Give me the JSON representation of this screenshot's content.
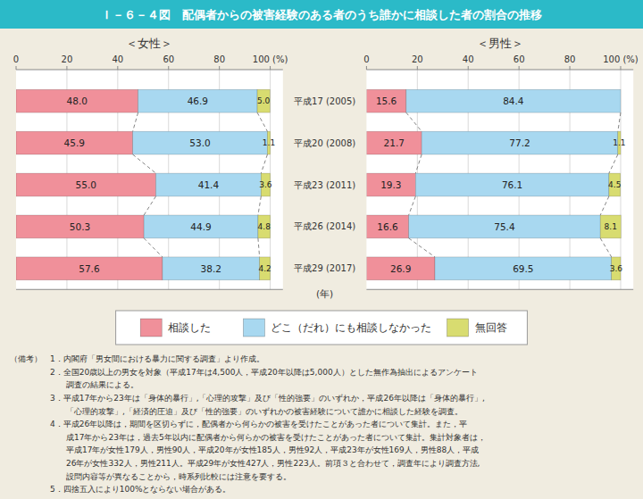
{
  "chart_data": [
    {
      "type": "bar",
      "title": "Ｉ－６－４図　配偶者からの被害経験のある者のうち誰かに相談した者の割合の推移",
      "subtitle": "＜女性＞",
      "ylabel": "(年)",
      "orientation": "horizontal",
      "stacked": true,
      "data_labels": true,
      "grid": true,
      "legend": "bottom",
      "categories": [
        "平成17 (2005)",
        "平成20 (2008)",
        "平成23 (2011)",
        "平成26 (2014)",
        "平成29 (2017)"
      ],
      "series": [
        {
          "name": "相談した",
          "color": "#f0909a",
          "values": [
            48.0,
            45.9,
            55.0,
            50.3,
            57.6
          ],
          "value_labels": [
            "48.0",
            "45.9",
            "55.0",
            "50.3",
            "57.6"
          ]
        },
        {
          "name": "どこ（だれ）にも相談しなかった",
          "color": "#a8d8f0",
          "values": [
            46.9,
            53.0,
            41.4,
            44.9,
            38.2
          ],
          "value_labels": [
            "46.9",
            "53.0",
            "41.4",
            "44.9",
            "38.2"
          ]
        },
        {
          "name": "無回答",
          "color": "#d8dc70",
          "values": [
            5.0,
            1.1,
            3.6,
            4.8,
            4.2
          ],
          "value_labels": [
            "5.0",
            "1.1",
            "3.6",
            "4.8",
            "4.2"
          ]
        }
      ],
      "xlim": [
        0,
        105
      ],
      "xticks": [
        0,
        20,
        40,
        60,
        80,
        {
          "value": 100,
          "label": "100 (%)"
        }
      ],
      "annotations": [
        "（備考）　1．内閣府「男女間における暴力に関する調査」より作成。",
        "　　　　　2．全国20歳以上の男女を対象（平成17年は4,500人，平成20年以降は5,000人）とした無作為抽出によるアンケート",
        "　　　　　　　調査の結果による。",
        "　　　　　3．平成17年から23年は「身体的暴行」,「心理的攻撃」及び「性的強要」のいずれか，平成26年以降は「身体的暴行」,",
        "　　　　　　　「心理的攻撃」,「経済的圧迫」及び「性的強要」のいずれかの被害経験について誰かに相談した経験を調査。",
        "　　　　　4．平成26年以降は，期間を区切らずに，配偶者から何らかの被害を受けたことがあった者について集計。また，平",
        "　　　　　　　成17年から23年は，過去5年以内に配偶者から何らかの被害を受けたことがあった者について集計。集計対象者は，",
        "　　　　　　　平成17年が女性179人，男性90人，平成20年が女性185人，男性92人，平成23年が女性169人，男性88人，平成",
        "　　　　　　　26年が女性332人，男性211人。平成29年が女性427人，男性223人。前項３と合わせて，調査年により調査方法,",
        "　　　　　　　設問内容等が異なることから，時系列比較には注意を要する。",
        "　　　　　5．四捨五入により100%とならない場合がある。"
      ]
    },
    {
      "type": "bar",
      "subtitle": "＜男性＞",
      "orientation": "horizontal",
      "stacked": true,
      "data_labels": true,
      "grid": true,
      "categories": [
        "平成17 (2005)",
        "平成20 (2008)",
        "平成23 (2011)",
        "平成26 (2014)",
        "平成29 (2017)"
      ],
      "series": [
        {
          "color": "#f0909a",
          "values": [
            15.6,
            21.7,
            19.3,
            16.6,
            26.9
          ]
        },
        {
          "color": "#a8d8f0",
          "values": [
            84.4,
            77.2,
            76.1,
            75.4,
            69.5
          ]
        },
        {
          "color": "#d8dc70",
          "values": [
            0.0,
            1.1,
            4.5,
            8.1,
            3.6
          ]
        }
      ],
      "xlim": [
        0,
        105
      ],
      "xticks": [
        0,
        20,
        40,
        60,
        80,
        {
          "value": 100,
          "label": "100 (%)"
        }
      ]
    }
  ]
}
